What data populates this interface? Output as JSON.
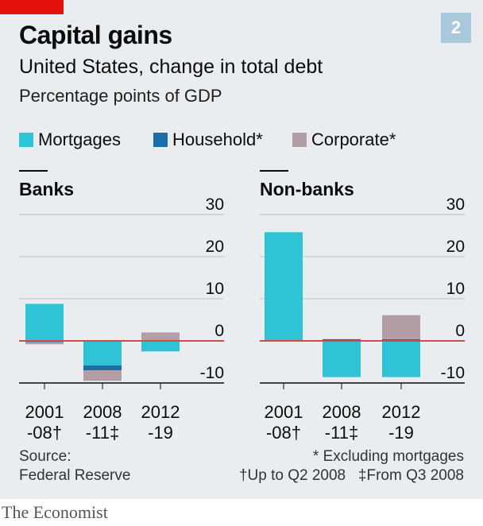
{
  "header": {
    "chart_number": "2",
    "title": "Capital gains",
    "subtitle": "United States, change in total debt",
    "unit": "Percentage points of GDP"
  },
  "legend": [
    {
      "label": "Mortgages",
      "color": "#2ec4d6"
    },
    {
      "label": "Household*",
      "color": "#1a6ea8"
    },
    {
      "label": "Corporate*",
      "color": "#b49ea5"
    }
  ],
  "chart_data": [
    {
      "type": "bar",
      "stacked": true,
      "title": "Banks",
      "categories": [
        [
          "2001",
          "-08†"
        ],
        [
          "2008",
          "-11‡"
        ],
        [
          "2012",
          "-19"
        ]
      ],
      "yticks": [
        30,
        20,
        10,
        0,
        -10
      ],
      "ylim": [
        -10,
        30
      ],
      "series": [
        {
          "name": "Mortgages",
          "color": "#2ec4d6",
          "values": [
            8.8,
            -5.8,
            -2.5
          ]
        },
        {
          "name": "Household*",
          "color": "#1a6ea8",
          "values": [
            -0.3,
            -1.2,
            0.0
          ]
        },
        {
          "name": "Corporate*",
          "color": "#b49ea5",
          "values": [
            -0.5,
            -2.5,
            2.0
          ]
        }
      ]
    },
    {
      "type": "bar",
      "stacked": true,
      "title": "Non-banks",
      "categories": [
        [
          "2001",
          "-08†"
        ],
        [
          "2008",
          "-11‡"
        ],
        [
          "2012",
          "-19"
        ]
      ],
      "yticks": [
        30,
        20,
        10,
        0,
        -10
      ],
      "ylim": [
        -10,
        30
      ],
      "series": [
        {
          "name": "Mortgages",
          "color": "#2ec4d6",
          "values": [
            25.8,
            -8.6,
            -8.6
          ]
        },
        {
          "name": "Household*",
          "color": "#1a6ea8",
          "values": [
            0.0,
            0.4,
            0.4
          ]
        },
        {
          "name": "Corporate*",
          "color": "#b49ea5",
          "values": [
            0.0,
            0.0,
            5.7
          ]
        }
      ]
    }
  ],
  "footer": {
    "source_line1": "Source:",
    "source_line2": "Federal Reserve",
    "note1": "* Excluding mortgages",
    "note2": "†Up to Q2 2008   ‡From Q3 2008"
  },
  "brand": "The Economist",
  "colors": {
    "accent": "#e3120b",
    "zero_line": "#d6494b",
    "grid": "#b8c0c6",
    "background": "#e9edf0"
  }
}
